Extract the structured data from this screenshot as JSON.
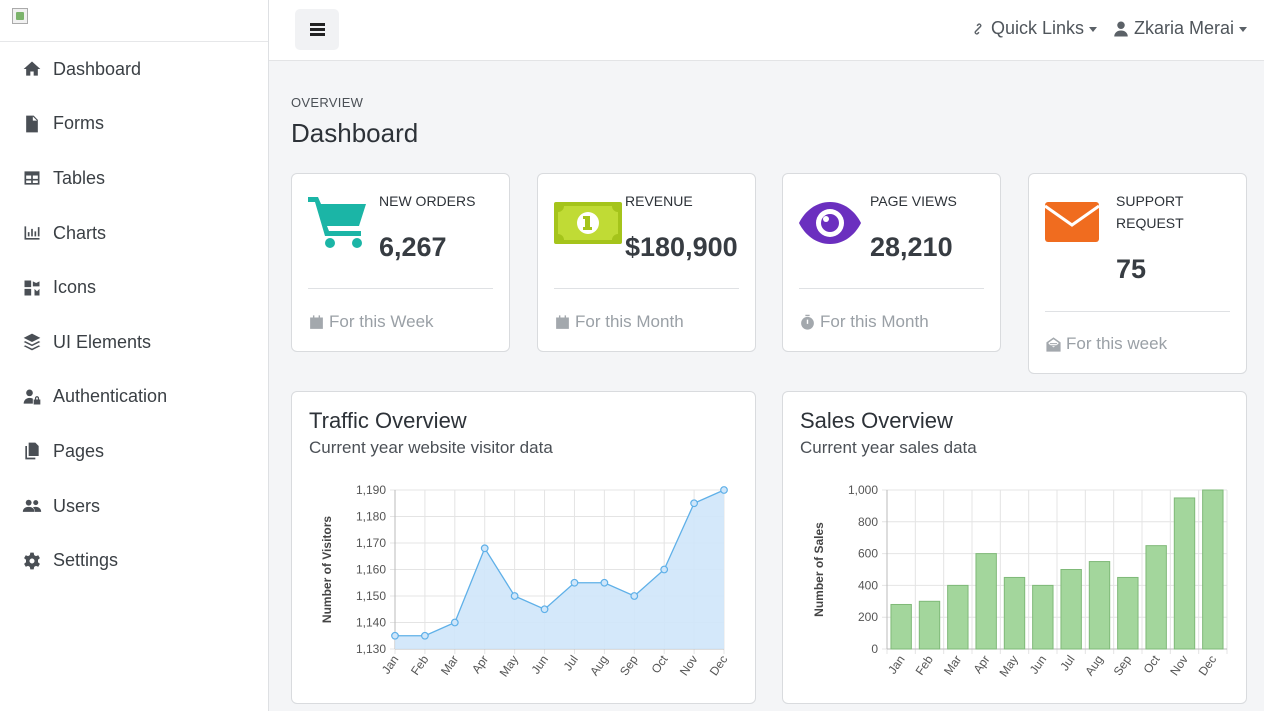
{
  "sidebar": {
    "items": [
      {
        "label": "Dashboard",
        "icon": "home-icon"
      },
      {
        "label": "Forms",
        "icon": "file-icon"
      },
      {
        "label": "Tables",
        "icon": "table-icon"
      },
      {
        "label": "Charts",
        "icon": "chart-icon"
      },
      {
        "label": "Icons",
        "icon": "icons-icon"
      },
      {
        "label": "UI Elements",
        "icon": "layers-icon"
      },
      {
        "label": "Authentication",
        "icon": "user-lock-icon"
      },
      {
        "label": "Pages",
        "icon": "copy-icon"
      },
      {
        "label": "Users",
        "icon": "users-icon"
      },
      {
        "label": "Settings",
        "icon": "gear-icon"
      }
    ]
  },
  "topbar": {
    "quick_links": "Quick Links",
    "user_name": "Zkaria Merai"
  },
  "header": {
    "overview": "OVERVIEW",
    "title": "Dashboard"
  },
  "stats": [
    {
      "label": "NEW ORDERS",
      "value": "6,267",
      "footer": "For this Week",
      "color": "#1bb5a6"
    },
    {
      "label": "REVENUE",
      "value": "$180,900",
      "footer": "For this Month",
      "color": "#a5c41b"
    },
    {
      "label": "PAGE VIEWS",
      "value": "28,210",
      "footer": "For this Month",
      "color": "#6b2fbf"
    },
    {
      "label_line1": "SUPPORT",
      "label_line2": "REQUEST",
      "value": "75",
      "footer": "For this week",
      "color": "#f06c1f"
    }
  ],
  "traffic": {
    "title": "Traffic Overview",
    "subtitle": "Current year website visitor data"
  },
  "sales": {
    "title": "Sales Overview",
    "subtitle": "Current year sales data"
  },
  "chart_data": [
    {
      "type": "area",
      "title": "Traffic Overview",
      "ylabel": "Number of Visitors",
      "xlabel": "",
      "categories": [
        "Jan",
        "Feb",
        "Mar",
        "Apr",
        "May",
        "Jun",
        "Jul",
        "Aug",
        "Sep",
        "Oct",
        "Nov",
        "Dec"
      ],
      "values": [
        1135,
        1135,
        1140,
        1168,
        1150,
        1145,
        1155,
        1155,
        1150,
        1160,
        1185,
        1190
      ],
      "ylim": [
        1130,
        1190
      ],
      "yticks": [
        1130,
        1140,
        1150,
        1160,
        1170,
        1180,
        1190
      ],
      "ytick_labels": [
        "1,130",
        "1,140",
        "1,150",
        "1,160",
        "1,170",
        "1,180",
        "1,190"
      ],
      "color": "#5fb0e8",
      "fill": "#cfe6fa",
      "grid": true
    },
    {
      "type": "bar",
      "title": "Sales Overview",
      "ylabel": "Number of Sales",
      "xlabel": "",
      "categories": [
        "Jan",
        "Feb",
        "Mar",
        "Apr",
        "May",
        "Jun",
        "Jul",
        "Aug",
        "Sep",
        "Oct",
        "Nov",
        "Dec"
      ],
      "values": [
        280,
        300,
        400,
        600,
        450,
        400,
        500,
        550,
        450,
        650,
        950,
        1000
      ],
      "ylim": [
        0,
        1000
      ],
      "yticks": [
        0,
        200,
        400,
        600,
        800,
        1000
      ],
      "ytick_labels": [
        "0",
        "200",
        "400",
        "600",
        "800",
        "1,000"
      ],
      "color": "#a3d69c",
      "stroke": "#7fb978",
      "grid": true
    }
  ]
}
